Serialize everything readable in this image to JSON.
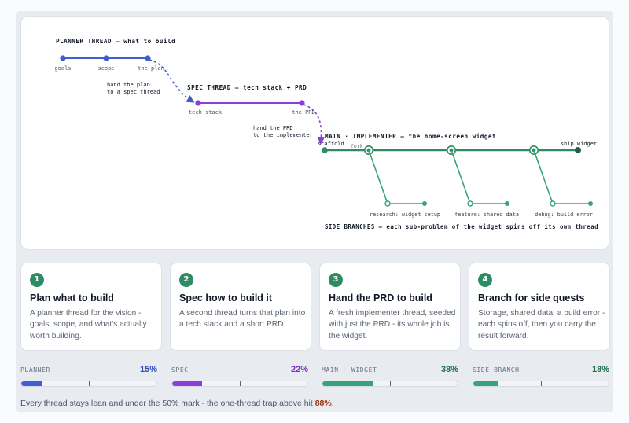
{
  "diagram": {
    "planner_title": "PLANNER THREAD – what to build",
    "planner_nodes": [
      "goals",
      "scope",
      "the plan"
    ],
    "handoff_1": [
      "hand the plan",
      "to a spec thread"
    ],
    "spec_title": "SPEC THREAD – tech stack + PRD",
    "spec_nodes": [
      "tech stack",
      "the PRD"
    ],
    "handoff_2": [
      "hand the PRD",
      "to the implementer"
    ],
    "main_title": "MAIN · IMPLEMENTER – the home-screen widget",
    "main_start": "scaffold",
    "fork_label": "fork",
    "main_end": "ship widget",
    "branches": [
      "research: widget setup",
      "feature: shared data",
      "debug: build error"
    ],
    "side_title": "SIDE BRANCHES – each sub-problem of the widget spins off its own thread",
    "colors": {
      "planner": "#3f5fd0",
      "spec": "#8b3fd6",
      "main": "#2e8b64",
      "main_dark": "#1f5f44"
    }
  },
  "steps": [
    {
      "num": "1",
      "title": "Plan what to build",
      "desc": "A planner thread for the vision - goals, scope, and what's actually worth building."
    },
    {
      "num": "2",
      "title": "Spec how to build it",
      "desc": "A second thread turns that plan into a tech stack and a short PRD."
    },
    {
      "num": "3",
      "title": "Hand the PRD to build",
      "desc": "A fresh implementer thread, seeded with just the PRD - its whole job is the widget."
    },
    {
      "num": "4",
      "title": "Branch for side quests",
      "desc": "Storage, shared data, a build error - each spins off, then you carry the result forward."
    }
  ],
  "meters": [
    {
      "name": "PLANNER",
      "pct_label": "15%",
      "value": 0.15,
      "color": "#3f5fd0",
      "text_color": "#2f4bb8"
    },
    {
      "name": "SPEC",
      "pct_label": "22%",
      "value": 0.22,
      "color": "#8b3fd6",
      "text_color": "#7a2fc7"
    },
    {
      "name": "MAIN · WIDGET",
      "pct_label": "38%",
      "value": 0.38,
      "color": "#3aa27a",
      "text_color": "#1f6f4c"
    },
    {
      "name": "SIDE BRANCH",
      "pct_label": "18%",
      "value": 0.18,
      "color": "#3aa27a",
      "text_color": "#1f6f4c"
    }
  ],
  "meter_threshold": 0.5,
  "footer": {
    "text": "Every thread stays lean and under the 50% mark - the one-thread trap above hit ",
    "highlight": "88%",
    "end": "."
  }
}
